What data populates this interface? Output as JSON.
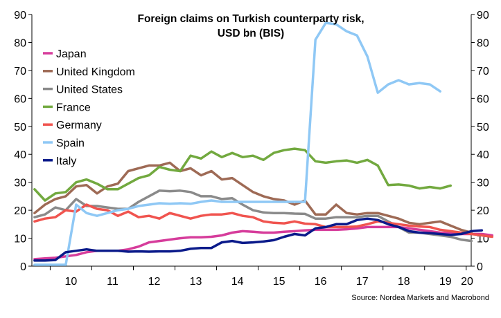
{
  "chart_data": {
    "type": "line",
    "title": "Foreign claims on Turkish counterparty risk,",
    "subtitle": "USD bn (BIS)",
    "source": "Source: Nordea Markets and Macrobond",
    "xlabel": "",
    "ylabel": "",
    "x_tick_labels": [
      "10",
      "11",
      "12",
      "13",
      "14",
      "15",
      "16",
      "17",
      "18",
      "19",
      "20"
    ],
    "x_range": [
      2009.56,
      2020.12
    ],
    "ylim": [
      0,
      90
    ],
    "y_ticks": [
      0,
      10,
      20,
      30,
      40,
      50,
      60,
      70,
      80,
      90
    ],
    "legend_position": "left",
    "x_start": 2009.625,
    "x_step": 0.25,
    "series": [
      {
        "name": "Japan",
        "color": "#D63C9B",
        "values": [
          2.5,
          2.8,
          3,
          3.5,
          4,
          5,
          5.5,
          5.5,
          5.5,
          6,
          7,
          8.5,
          9,
          9.5,
          10,
          10.3,
          10.3,
          10.5,
          11,
          12,
          12.5,
          12.3,
          12,
          12,
          12.3,
          12.5,
          12.8,
          13,
          13,
          13,
          13.2,
          13.5,
          14,
          14,
          14,
          14,
          13.5,
          13,
          12.5,
          12,
          11.8,
          11.5,
          11.5,
          11.5,
          11
        ]
      },
      {
        "name": "United Kingdom",
        "color": "#9E6A55",
        "values": [
          19,
          22,
          24,
          25,
          28.5,
          29,
          26,
          28.5,
          29.5,
          34,
          35,
          36,
          36,
          37,
          34,
          35,
          32.5,
          34,
          31,
          31.5,
          29,
          26.5,
          25,
          24,
          23.5,
          22,
          23.5,
          18.5,
          18.5,
          22,
          19,
          18.5,
          19,
          19,
          18,
          17,
          15.5,
          15,
          15.5,
          16,
          14.5,
          13,
          12
        ]
      },
      {
        "name": "United States",
        "color": "#8A8A8A",
        "values": [
          17.5,
          18.5,
          21,
          20,
          24,
          21.5,
          21.5,
          21,
          20.5,
          20.5,
          23,
          25,
          27,
          26.8,
          27,
          26.5,
          25,
          25,
          24,
          24.3,
          22,
          20,
          19.2,
          19,
          19,
          18.8,
          18.7,
          17,
          17,
          17.5,
          17.5,
          17.5,
          18,
          18,
          16,
          14,
          12,
          12,
          11.5,
          11,
          10.5,
          9.5,
          9
        ]
      },
      {
        "name": "France",
        "color": "#72A93F",
        "values": [
          27.5,
          23.5,
          26,
          26.5,
          30,
          31,
          29.5,
          27.5,
          27.5,
          29.5,
          31.5,
          32.5,
          35.5,
          34.5,
          34,
          39.5,
          38.5,
          41,
          39,
          40.5,
          39,
          39.5,
          38,
          40.5,
          41.5,
          42,
          41.5,
          37.5,
          37,
          37.5,
          37.8,
          37,
          38,
          36,
          29,
          29.2,
          28.8,
          27.8,
          28.3,
          27.8,
          28.8
        ]
      },
      {
        "name": "Germany",
        "color": "#F0544F",
        "values": [
          16,
          17,
          17.5,
          20,
          19.5,
          22,
          20.5,
          20,
          18,
          19.5,
          17.5,
          18,
          17,
          19,
          18,
          17,
          18,
          18.5,
          18.5,
          19,
          18,
          17.5,
          16,
          15.5,
          15.3,
          16,
          15.2,
          15,
          14,
          14,
          14,
          14.2,
          15,
          16,
          15.5,
          15,
          14.5,
          14.2,
          14,
          13,
          12.5,
          12,
          11.5,
          11,
          10.5
        ]
      },
      {
        "name": "Spain",
        "color": "#8FC8F5",
        "values": [
          0.5,
          0.5,
          0.5,
          0.5,
          22,
          19,
          18,
          19,
          20,
          20.5,
          21.5,
          22,
          22.5,
          22.3,
          22.5,
          22.3,
          23,
          23.5,
          23,
          23,
          23,
          23,
          23,
          23,
          23,
          23,
          23,
          81,
          87,
          86.5,
          84,
          82.5,
          75,
          62,
          65,
          66.5,
          65,
          65.5,
          65,
          62.5
        ]
      },
      {
        "name": "Italy",
        "color": "#0A1A8A",
        "values": [
          2,
          2,
          2.2,
          5,
          5.5,
          6,
          5.5,
          5.5,
          5.5,
          5.2,
          5.3,
          5.2,
          5.3,
          5.3,
          5.5,
          6.2,
          6.5,
          6.5,
          8.5,
          9,
          8.3,
          8.5,
          8.8,
          9.3,
          10.5,
          11.5,
          11,
          13.5,
          14,
          15,
          15,
          16.5,
          17,
          16.5,
          15,
          14,
          12.5,
          12,
          11.8,
          11.5,
          11.2,
          11.5,
          12.5,
          12.8
        ]
      }
    ]
  }
}
